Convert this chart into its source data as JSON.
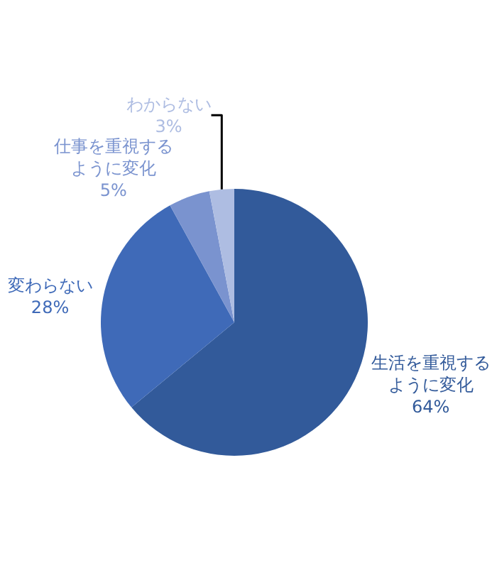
{
  "chart_data": {
    "type": "pie",
    "categories": [
      "生活を重視するように変化",
      "変わらない",
      "仕事を重視するように変化",
      "わからない"
    ],
    "values": [
      64,
      28,
      5,
      3
    ],
    "value_labels": [
      "64%",
      "28%",
      "5%",
      "3%"
    ],
    "colors": [
      "#325a9a",
      "#3f6ab8",
      "#7a93cf",
      "#aebde2"
    ],
    "legend": false
  }
}
